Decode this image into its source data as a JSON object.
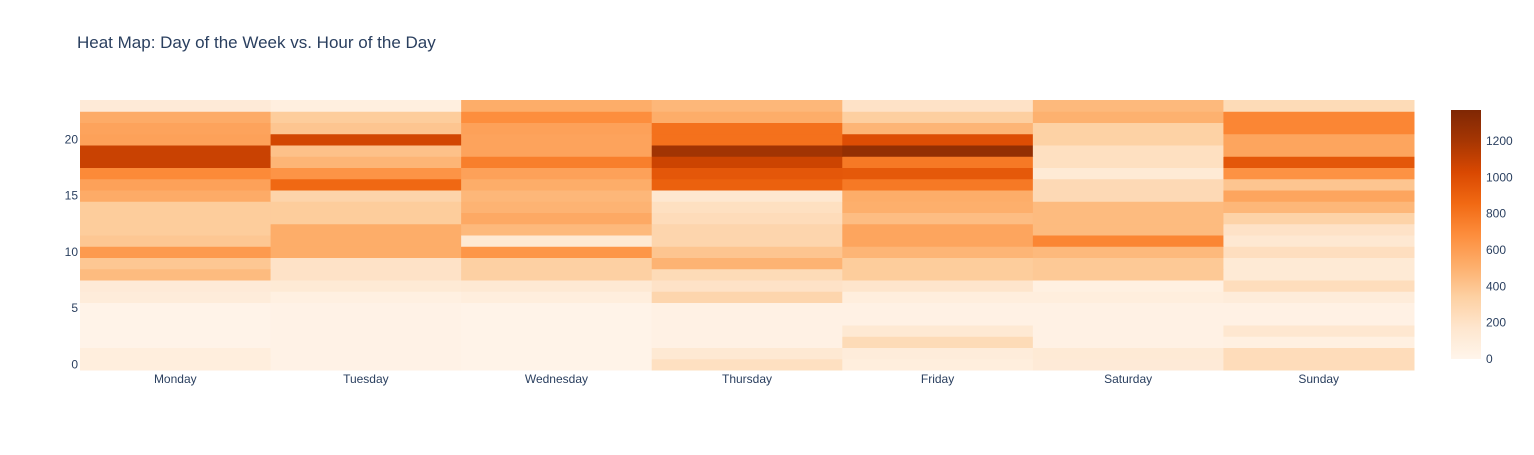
{
  "chart_data": {
    "type": "heatmap",
    "title": "Heat Map: Day of the Week vs. Hour of the Day",
    "xlabel": "",
    "ylabel": "",
    "x": [
      "Monday",
      "Tuesday",
      "Wednesday",
      "Thursday",
      "Friday",
      "Saturday",
      "Sunday"
    ],
    "y": [
      0,
      1,
      2,
      3,
      4,
      5,
      6,
      7,
      8,
      9,
      10,
      11,
      12,
      13,
      14,
      15,
      16,
      17,
      18,
      19,
      20,
      21,
      22,
      23
    ],
    "y_ticks": [
      0,
      5,
      10,
      15,
      20
    ],
    "ylim": [
      -0.5,
      23.5
    ],
    "z": [
      [
        80,
        30,
        20,
        220,
        80,
        120,
        250
      ],
      [
        80,
        30,
        20,
        140,
        100,
        130,
        250
      ],
      [
        20,
        30,
        20,
        40,
        260,
        40,
        60
      ],
      [
        20,
        30,
        20,
        40,
        140,
        40,
        160
      ],
      [
        20,
        30,
        20,
        40,
        40,
        40,
        40
      ],
      [
        20,
        30,
        20,
        40,
        40,
        40,
        40
      ],
      [
        100,
        60,
        80,
        300,
        80,
        80,
        100
      ],
      [
        120,
        130,
        140,
        200,
        180,
        60,
        240
      ],
      [
        450,
        200,
        340,
        260,
        360,
        380,
        130
      ],
      [
        390,
        200,
        340,
        490,
        360,
        380,
        130
      ],
      [
        620,
        520,
        640,
        400,
        480,
        460,
        230
      ],
      [
        390,
        520,
        140,
        300,
        560,
        720,
        150
      ],
      [
        360,
        520,
        460,
        300,
        560,
        450,
        200
      ],
      [
        360,
        360,
        540,
        250,
        440,
        450,
        320
      ],
      [
        360,
        360,
        490,
        220,
        510,
        450,
        470
      ],
      [
        530,
        310,
        470,
        160,
        520,
        270,
        560
      ],
      [
        580,
        860,
        520,
        900,
        780,
        270,
        400
      ],
      [
        700,
        650,
        580,
        950,
        940,
        130,
        660
      ],
      [
        1080,
        480,
        750,
        1070,
        780,
        220,
        950
      ],
      [
        1080,
        420,
        570,
        1220,
        1280,
        220,
        560
      ],
      [
        580,
        1050,
        570,
        820,
        1000,
        330,
        560
      ],
      [
        570,
        400,
        580,
        820,
        480,
        330,
        720
      ],
      [
        530,
        360,
        680,
        520,
        350,
        500,
        720
      ],
      [
        120,
        70,
        520,
        470,
        200,
        460,
        260
      ]
    ],
    "zmin": 0,
    "zmax": 1370,
    "colorscale": "Oranges",
    "colorscale_stops": [
      "#fff5eb",
      "#fee6ce",
      "#fdd0a2",
      "#fdae6b",
      "#fd8d3c",
      "#f16913",
      "#d94801",
      "#a63603",
      "#7f2704"
    ],
    "colorbar_ticks": [
      0,
      200,
      400,
      600,
      800,
      1000,
      1200
    ],
    "grid": false,
    "legend": "colorbar-right"
  }
}
